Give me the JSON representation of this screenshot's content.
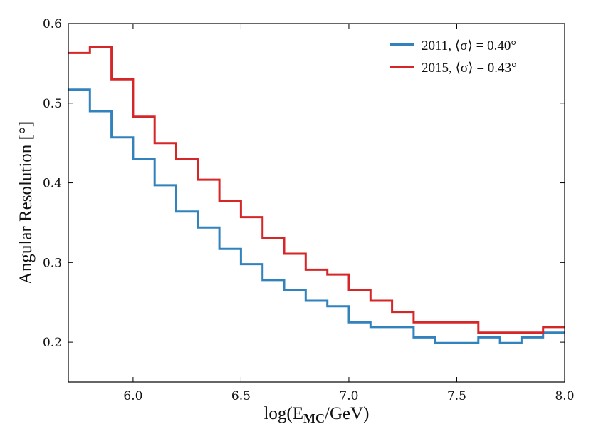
{
  "chart_data": {
    "type": "line",
    "drawstyle": "steps",
    "title": "",
    "xlabel": "log(E_MC/GeV)",
    "xlabel_main": "log(E",
    "xlabel_sub": "MC",
    "xlabel_tail": "/GeV)",
    "ylabel": "Angular Resolution [°]",
    "xlim": [
      5.7,
      8.0
    ],
    "ylim": [
      0.15,
      0.6
    ],
    "xticks": [
      6.0,
      6.5,
      7.0,
      7.5,
      8.0
    ],
    "xtick_labels": [
      "6.0",
      "6.5",
      "7.0",
      "7.5",
      "8.0"
    ],
    "yticks": [
      0.2,
      0.3,
      0.4,
      0.5,
      0.6
    ],
    "ytick_labels": [
      "0.2",
      "0.3",
      "0.4",
      "0.5",
      "0.6"
    ],
    "grid": false,
    "legend_position": "top-right",
    "bin_edges": [
      5.7,
      5.8,
      5.9,
      6.0,
      6.1,
      6.2,
      6.3,
      6.4,
      6.5,
      6.6,
      6.7,
      6.8,
      6.9,
      7.0,
      7.1,
      7.2,
      7.3,
      7.4,
      7.5,
      7.6,
      7.7,
      7.8,
      7.9,
      8.0
    ],
    "series": [
      {
        "name": "2011, ⟨σ⟩ = 0.40°",
        "color": "#3182bd",
        "values": [
          0.517,
          0.49,
          0.457,
          0.43,
          0.397,
          0.364,
          0.344,
          0.317,
          0.298,
          0.278,
          0.265,
          0.252,
          0.245,
          0.225,
          0.219,
          0.219,
          0.206,
          0.199,
          0.199,
          0.206,
          0.199,
          0.206,
          0.212
        ]
      },
      {
        "name": "2015, ⟨σ⟩ = 0.43°",
        "color": "#d62728",
        "values": [
          0.563,
          0.57,
          0.53,
          0.483,
          0.45,
          0.43,
          0.404,
          0.377,
          0.357,
          0.331,
          0.311,
          0.291,
          0.285,
          0.265,
          0.252,
          0.238,
          0.225,
          0.225,
          0.225,
          0.212,
          0.212,
          0.212,
          0.219
        ]
      }
    ]
  }
}
